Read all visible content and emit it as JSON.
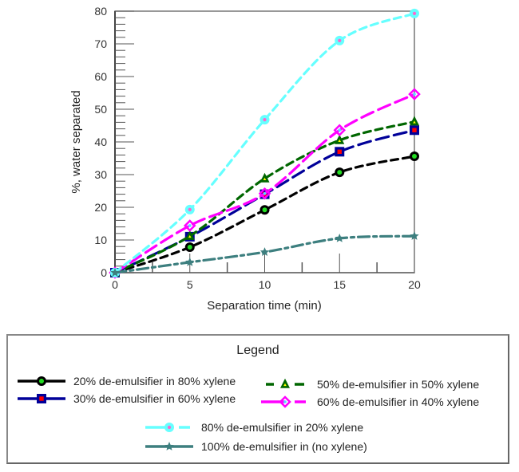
{
  "chart_data": {
    "type": "line",
    "title": "",
    "xlabel": "Separation time (min)",
    "ylabel": "%, water separated",
    "xlim": [
      0,
      20
    ],
    "ylim": [
      0,
      80
    ],
    "x_ticks": [
      0,
      5,
      10,
      15,
      20
    ],
    "x_tick_labels": [
      "0",
      "5",
      "10",
      "15",
      "20"
    ],
    "y_ticks": [
      0,
      10,
      20,
      30,
      40,
      50,
      60,
      70,
      80
    ],
    "y_tick_labels": [
      "0",
      "10",
      "20",
      "30",
      "40",
      "50",
      "60",
      "70",
      "80"
    ],
    "grid": false,
    "legend_title": "Legend",
    "legend_position": "bottom",
    "x": [
      0,
      5,
      10,
      15,
      20
    ],
    "series": [
      {
        "name": "20% de-emulsifier in 80% xylene",
        "values": [
          0,
          7.8,
          19.2,
          30.7,
          35.6
        ],
        "color": "#000000",
        "marker": "circle",
        "marker_fill": "#22dd22",
        "dash": "dashed"
      },
      {
        "name": "30% de-emulsifier in 60% xylene",
        "values": [
          0,
          11,
          24,
          37,
          43.6
        ],
        "color": "#000099",
        "marker": "square",
        "marker_fill": "#ff0000",
        "dash": "long-dash"
      },
      {
        "name": "50% de-emulsifier in 50% xylene",
        "values": [
          0,
          11.2,
          28.8,
          40.5,
          46.2
        ],
        "color": "#006600",
        "marker": "triangle",
        "marker_fill": "#ffff00",
        "dash": "dashed"
      },
      {
        "name": "60% de-emulsifier in 40% xylene",
        "values": [
          0,
          14.4,
          24.2,
          43.6,
          54.6
        ],
        "color": "#ff00ff",
        "marker": "diamond",
        "marker_fill": "#55ddff",
        "dash": "long-dash"
      },
      {
        "name": "80% de-emulsifier in 20% xylene",
        "values": [
          0,
          19.3,
          46.8,
          71,
          79.3
        ],
        "color": "#66ffff",
        "marker": "circle",
        "marker_fill": "#ff66cc",
        "dash": "dashed"
      },
      {
        "name": "100% de-emulsifier in (no xylene)",
        "values": [
          0,
          3.2,
          6.3,
          10.5,
          11.2
        ],
        "color": "#3d7f7f",
        "marker": "star",
        "marker_fill": "#3d7f7f",
        "dash": "dash-dot"
      }
    ]
  }
}
